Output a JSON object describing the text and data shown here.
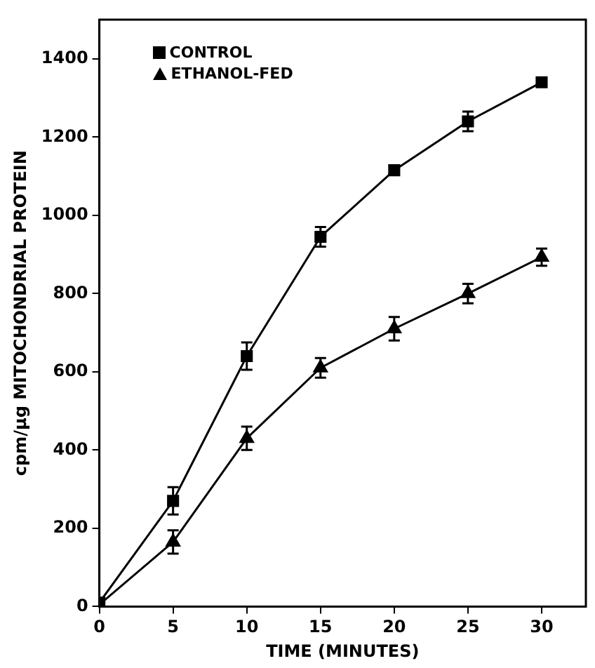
{
  "chart_data": {
    "type": "line",
    "xlabel": "TIME (MINUTES)",
    "ylabel": "cpm/µg MITOCHONDRIAL PROTEIN",
    "x": [
      0,
      5,
      10,
      15,
      20,
      25,
      30
    ],
    "xlim": [
      0,
      33
    ],
    "xticks": [
      0,
      5,
      10,
      15,
      20,
      25,
      30
    ],
    "ylim": [
      0,
      1500
    ],
    "yticks": [
      0,
      200,
      400,
      600,
      800,
      1000,
      1200,
      1400
    ],
    "legend": "top left",
    "grid": false,
    "series": [
      {
        "name": "CONTROL",
        "color": "#000000",
        "marker": "square",
        "values": [
          10,
          270,
          640,
          945,
          1115,
          1240,
          1340
        ],
        "errors": [
          null,
          35,
          35,
          25,
          12,
          25,
          null
        ]
      },
      {
        "name": "ETHANOL-FED",
        "color": "#000000",
        "marker": "triangle",
        "values": [
          5,
          165,
          430,
          610,
          710,
          800,
          893
        ],
        "errors": [
          null,
          30,
          30,
          25,
          30,
          25,
          22
        ]
      }
    ]
  }
}
